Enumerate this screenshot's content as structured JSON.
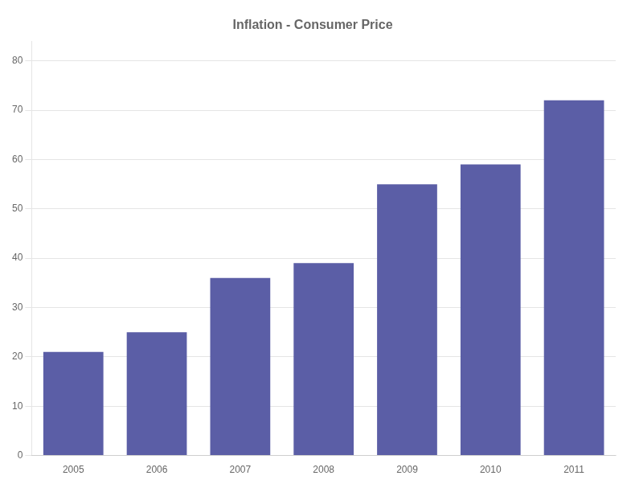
{
  "chart_data": {
    "type": "bar",
    "title": "Inflation - Consumer Price",
    "categories": [
      "2005",
      "2006",
      "2007",
      "2008",
      "2009",
      "2010",
      "2011"
    ],
    "values": [
      21,
      25,
      36,
      39,
      55,
      59,
      72
    ],
    "color": "#5B5EA6",
    "ylim": [
      0,
      84
    ],
    "yticks": [
      0,
      10,
      20,
      30,
      40,
      50,
      60,
      70,
      80
    ],
    "grid": true
  }
}
